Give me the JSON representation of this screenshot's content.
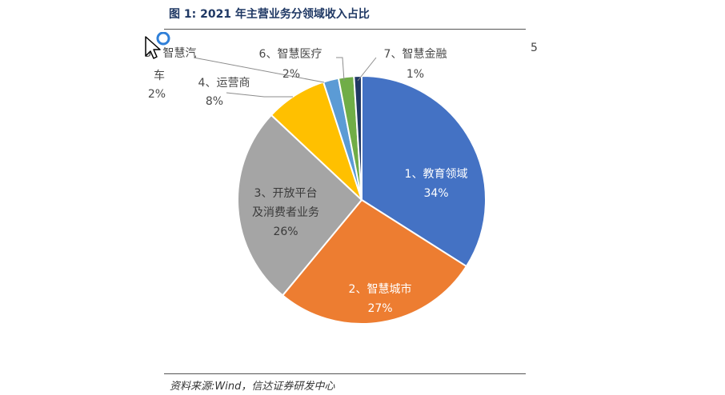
{
  "figure": {
    "title": "图 1:  2021 年主营业务分领域收入占比",
    "source": "资料来源:Wind，信达证券研发中心",
    "edge_glyph": "5"
  },
  "chart_data": {
    "type": "pie",
    "title": "",
    "slices": [
      {
        "label_lines": [
          "1、教育领域"
        ],
        "value": 34,
        "value_label": "34%",
        "color": "#4472c4"
      },
      {
        "label_lines": [
          "2、智慧城市"
        ],
        "value": 27,
        "value_label": "27%",
        "color": "#ed7d31"
      },
      {
        "label_lines": [
          "3、开放平台",
          "及消费者业务"
        ],
        "value": 26,
        "value_label": "26%",
        "color": "#a5a5a5"
      },
      {
        "label_lines": [
          "4、运营商"
        ],
        "value": 8,
        "value_label": "8%",
        "color": "#ffc000"
      },
      {
        "label_lines": [
          "5、智慧汽",
          "车"
        ],
        "value": 2,
        "value_label": "2%",
        "color": "#5b9bd5"
      },
      {
        "label_lines": [
          "6、智慧医疗"
        ],
        "value": 2,
        "value_label": "2%",
        "color": "#70ad47"
      },
      {
        "label_lines": [
          "7、智慧金融"
        ],
        "value": 1,
        "value_label": "1%",
        "color": "#203864"
      }
    ]
  }
}
